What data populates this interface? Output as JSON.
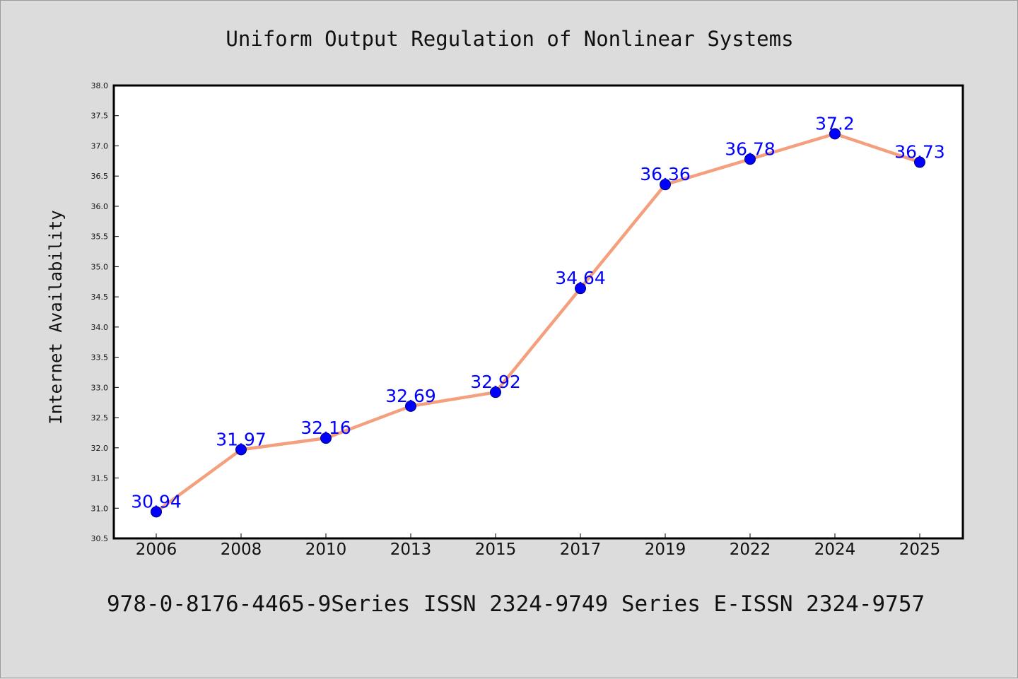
{
  "chart_data": {
    "type": "line",
    "title": "Uniform Output Regulation of Nonlinear Systems",
    "xlabel": "",
    "ylabel": "Internet Availability",
    "categories": [
      "2006",
      "2008",
      "2010",
      "2013",
      "2015",
      "2017",
      "2019",
      "2022",
      "2024",
      "2025"
    ],
    "series": [
      {
        "values": [
          30.94,
          31.97,
          32.16,
          32.69,
          32.92,
          34.64,
          36.36,
          36.78,
          37.2,
          36.73
        ],
        "labels": [
          "30.94",
          "31.97",
          "32.16",
          "32.69",
          "32.92",
          "34.64",
          "36.36",
          "36.78",
          "37.2",
          "36.73"
        ],
        "line_color": "#f4a07e",
        "marker_color": "#0000ff"
      }
    ],
    "ylim": [
      30.5,
      38.0
    ],
    "yticks": [
      "30.5",
      "31.0",
      "31.5",
      "32.0",
      "32.5",
      "33.0",
      "33.5",
      "34.0",
      "34.5",
      "35.0",
      "35.5",
      "36.0",
      "36.5",
      "37.0",
      "37.5",
      "38.0"
    ],
    "grid": false,
    "legend": "none"
  },
  "footer": {
    "text": "978-0-8176-4465-9Series ISSN 2324-9749 Series E-ISSN 2324-9757"
  },
  "colors": {
    "background": "#dcdcdc",
    "plot_area": "#ffffff",
    "line": "#f4a07e",
    "marker": "#0000ff",
    "data_label": "#0000ff"
  }
}
